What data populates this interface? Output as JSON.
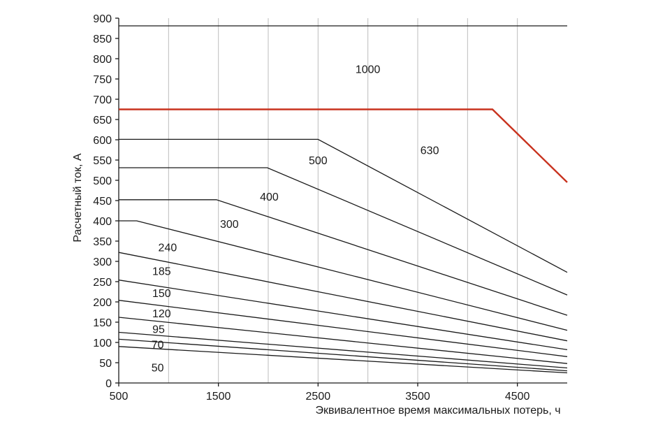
{
  "chart_data": {
    "type": "line",
    "title": "",
    "xlabel": "Эквивалентное время максимальных потерь, ч",
    "ylabel": "Расчетный ток, А",
    "xlim": [
      500,
      5000
    ],
    "ylim": [
      0,
      900
    ],
    "x_ticks": [
      "500",
      "1500",
      "2500",
      "3500",
      "4500"
    ],
    "x_tick_values": [
      500,
      1500,
      2500,
      3500,
      4500
    ],
    "y_ticks": [
      "0",
      "50",
      "100",
      "150",
      "200",
      "250",
      "300",
      "350",
      "400",
      "450",
      "500",
      "550",
      "600",
      "650",
      "700",
      "750",
      "800",
      "850",
      "900"
    ],
    "y_tick_values": [
      0,
      50,
      100,
      150,
      200,
      250,
      300,
      350,
      400,
      450,
      500,
      550,
      600,
      650,
      700,
      750,
      800,
      850,
      900
    ],
    "vertical_grid_x": [
      1000,
      1500,
      2000,
      2500,
      3000,
      3500,
      4000,
      4500
    ],
    "grid": true,
    "colors": {
      "default_line": "#1a1a1a",
      "highlight_line": "#c8321e",
      "grid": "#bdbdbd"
    },
    "series": [
      {
        "name": "50",
        "points": [
          [
            500,
            90
          ],
          [
            5000,
            25
          ]
        ]
      },
      {
        "name": "70",
        "points": [
          [
            500,
            108
          ],
          [
            5000,
            30
          ]
        ]
      },
      {
        "name": "95",
        "points": [
          [
            500,
            125
          ],
          [
            5000,
            37
          ]
        ]
      },
      {
        "name": "120",
        "points": [
          [
            500,
            162
          ],
          [
            5000,
            48
          ]
        ]
      },
      {
        "name": "150",
        "points": [
          [
            500,
            204
          ],
          [
            5000,
            65
          ]
        ]
      },
      {
        "name": "185",
        "points": [
          [
            500,
            254
          ],
          [
            5000,
            82
          ]
        ]
      },
      {
        "name": "240",
        "points": [
          [
            500,
            322
          ],
          [
            5000,
            104
          ]
        ]
      },
      {
        "name": "300",
        "points": [
          [
            500,
            400
          ],
          [
            680,
            400
          ],
          [
            5000,
            130
          ]
        ]
      },
      {
        "name": "400",
        "points": [
          [
            500,
            452
          ],
          [
            1480,
            452
          ],
          [
            5000,
            167
          ]
        ]
      },
      {
        "name": "500",
        "points": [
          [
            500,
            531
          ],
          [
            1990,
            531
          ],
          [
            5000,
            217
          ]
        ]
      },
      {
        "name": "630",
        "points": [
          [
            500,
            601
          ],
          [
            2500,
            601
          ],
          [
            5000,
            273
          ]
        ]
      },
      {
        "name": "1000",
        "points": [
          [
            500,
            675
          ],
          [
            4250,
            675
          ],
          [
            5000,
            495
          ]
        ],
        "color": "#c8321e"
      },
      {
        "name": "",
        "points": [
          [
            500,
            881
          ],
          [
            5000,
            881
          ]
        ]
      }
    ],
    "annotations": [
      {
        "text": "1000",
        "x": 3000,
        "y": 775
      },
      {
        "text": "630",
        "x": 3620,
        "y": 575
      },
      {
        "text": "500",
        "x": 2500,
        "y": 550
      },
      {
        "text": "400",
        "x": 2010,
        "y": 460
      },
      {
        "text": "300",
        "x": 1610,
        "y": 393
      },
      {
        "text": "240",
        "x": 990,
        "y": 335
      },
      {
        "text": "185",
        "x": 930,
        "y": 277
      },
      {
        "text": "150",
        "x": 930,
        "y": 222
      },
      {
        "text": "120",
        "x": 930,
        "y": 172
      },
      {
        "text": "95",
        "x": 900,
        "y": 134
      },
      {
        "text": "70",
        "x": 890,
        "y": 96
      },
      {
        "text": "50",
        "x": 890,
        "y": 39
      }
    ]
  }
}
